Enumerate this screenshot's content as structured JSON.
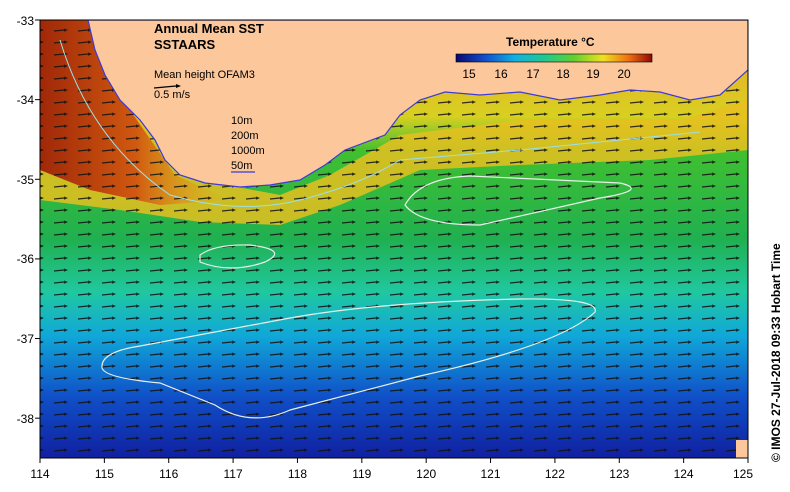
{
  "title_line1": "Annual Mean SST",
  "title_line2": "SSTAARS",
  "vector_label": "Mean height OFAM3",
  "vector_scale": "0.5 m/s",
  "depth_legend": [
    "10m",
    "200m",
    "1000m",
    "50m"
  ],
  "colorbar": {
    "title": "Temperature °C",
    "ticks": [
      "15",
      "16",
      "17",
      "18",
      "19",
      "20"
    ]
  },
  "credit": "© IMOS 27-Jul-2018 09:33 Hobart Time",
  "axes": {
    "x_ticks": [
      "114",
      "115",
      "116",
      "117",
      "118",
      "119",
      "120",
      "121",
      "122",
      "123",
      "124",
      "125"
    ],
    "y_ticks": [
      "-33",
      "-34",
      "-35",
      "-36",
      "-37",
      "-38"
    ],
    "x_range": [
      114,
      125
    ],
    "y_range": [
      -38.5,
      -33
    ]
  },
  "colors": {
    "land": "#fbc79b",
    "contour": "#e8f0e8",
    "coast": "#3b3bd6"
  }
}
